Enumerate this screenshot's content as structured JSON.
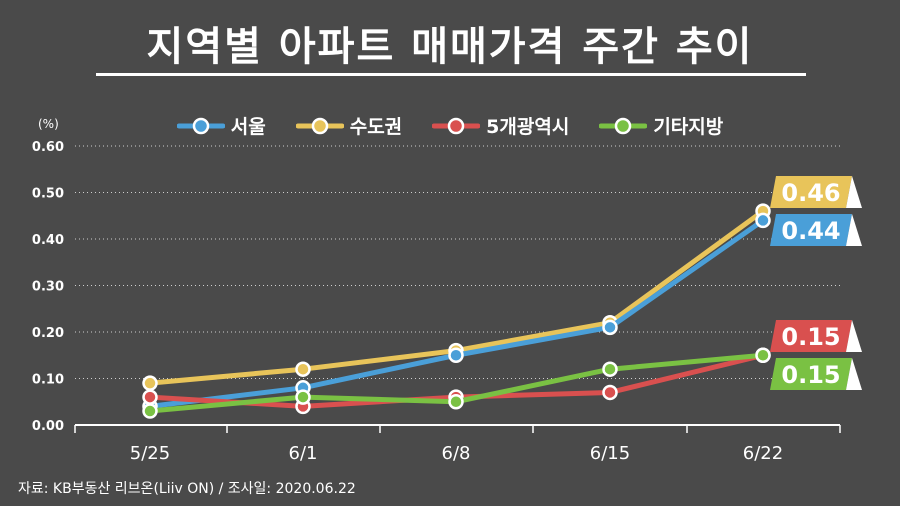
{
  "title": "지역별 아파트 매매가격 주간 추이",
  "source": "자료: KB부동산 리브온(Liiv ON)  / 조사일: 2020.06.22",
  "chart_data": {
    "type": "line",
    "title": "지역별 아파트 매매가격 주간 추이",
    "ylabel": "(%)",
    "xlabel": "",
    "categories": [
      "5/25",
      "6/1",
      "6/8",
      "6/15",
      "6/22"
    ],
    "ylim": [
      0,
      0.6
    ],
    "yticks": [
      "0.00",
      "0.10",
      "0.20",
      "0.30",
      "0.40",
      "0.50",
      "0.60"
    ],
    "grid": true,
    "legend_position": "top",
    "series": [
      {
        "name": "서울",
        "color": "#4a9fd8",
        "values": [
          0.04,
          0.08,
          0.15,
          0.21,
          0.44
        ],
        "end_label": "0.44"
      },
      {
        "name": "수도권",
        "color": "#e8c45a",
        "values": [
          0.09,
          0.12,
          0.16,
          0.22,
          0.46
        ],
        "end_label": "0.46"
      },
      {
        "name": "5개광역시",
        "color": "#d9504f",
        "values": [
          0.06,
          0.04,
          0.06,
          0.07,
          0.15
        ],
        "end_label": "0.15"
      },
      {
        "name": "기타지방",
        "color": "#7ac143",
        "values": [
          0.03,
          0.06,
          0.05,
          0.12,
          0.15
        ],
        "end_label": "0.15"
      }
    ]
  }
}
